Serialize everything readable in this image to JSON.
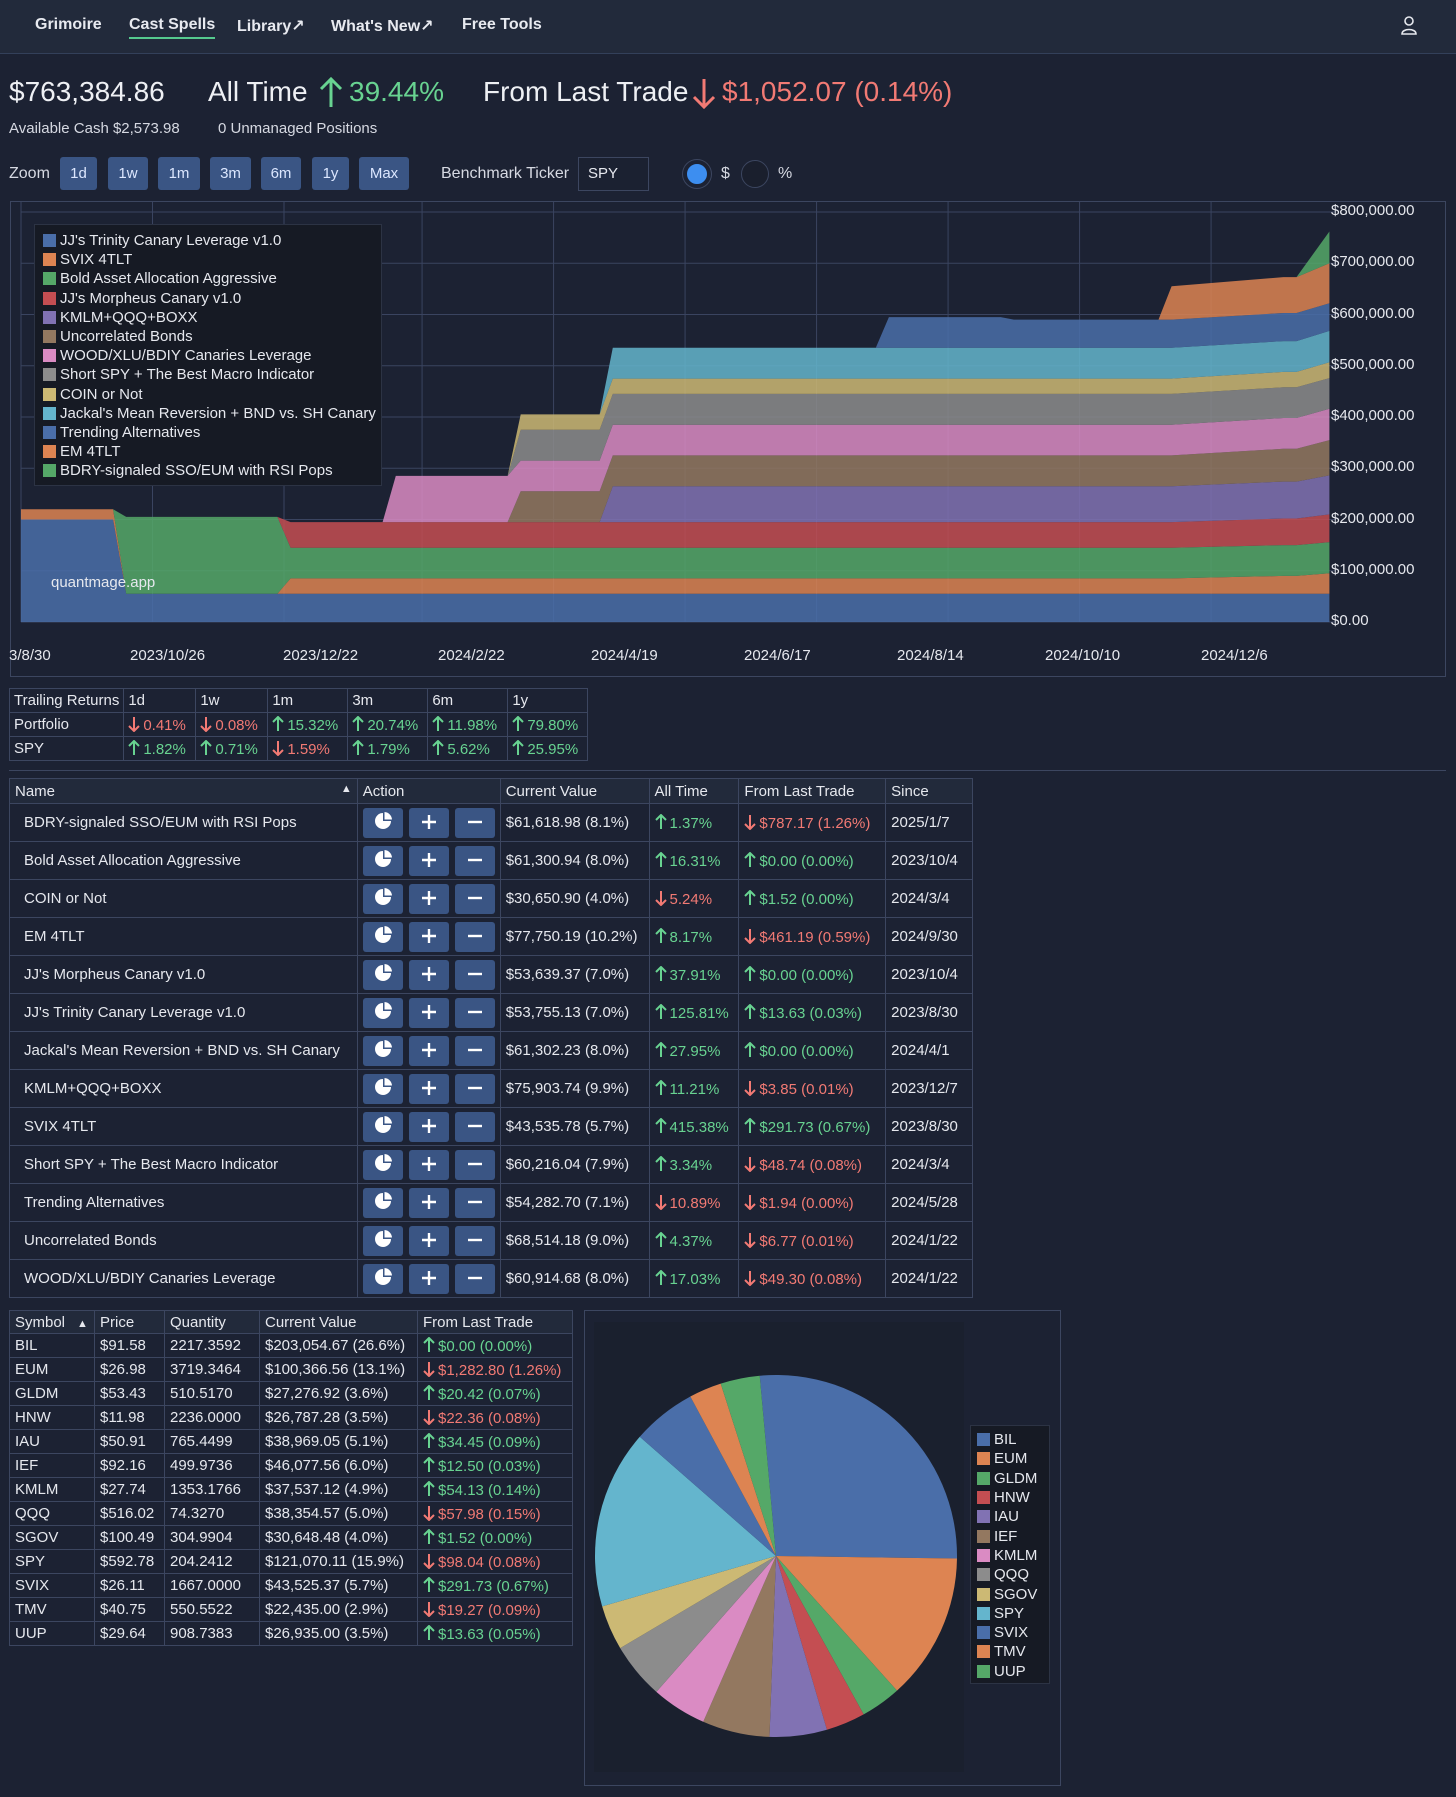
{
  "nav": {
    "items": [
      "Grimoire",
      "Cast Spells",
      "Library↗",
      "What's New↗",
      "Free Tools"
    ],
    "active": "Cast Spells",
    "user_icon": "user-icon"
  },
  "summary": {
    "total_value": "$763,384.86",
    "all_time_label": "All Time",
    "all_time_value": "39.44%",
    "all_time_direction": "up",
    "last_trade_label": "From Last Trade",
    "last_trade_value": "$1,052.07 (0.14%)",
    "last_trade_direction": "down",
    "available_cash": "Available Cash $2,573.98",
    "unmanaged": "0 Unmanaged Positions"
  },
  "controls": {
    "zoom_label": "Zoom",
    "zoom_buttons": [
      "1d",
      "1w",
      "1m",
      "3m",
      "6m",
      "1y",
      "Max"
    ],
    "benchmark_label": "Benchmark Ticker",
    "benchmark_value": "SPY",
    "mode_options": [
      "$",
      "%"
    ],
    "mode_selected": "$"
  },
  "colors": {
    "green": "#68d391",
    "red": "#f27a74",
    "button": "#3a5584",
    "background": "#1c2233"
  },
  "chart_data": {
    "type": "area",
    "stacked": true,
    "watermark": "quantmage.app",
    "x_ticks": [
      "3/8/30",
      "2023/10/26",
      "2023/12/22",
      "2024/2/22",
      "2024/4/19",
      "2024/6/17",
      "2024/8/14",
      "2024/10/10",
      "2024/12/6"
    ],
    "y_ticks": [
      "$0.00",
      "$100,000.00",
      "$200,000.00",
      "$300,000.00",
      "$400,000.00",
      "$500,000.00",
      "$600,000.00",
      "$700,000.00",
      "$800,000.00"
    ],
    "ylim": [
      0,
      800000
    ],
    "legend_position": "top-left",
    "grid": true,
    "x": [
      0,
      0.07,
      0.08,
      0.195,
      0.205,
      0.275,
      0.285,
      0.37,
      0.38,
      0.405,
      0.415,
      0.44,
      0.45,
      0.535,
      0.545,
      0.65,
      0.66,
      0.745,
      0.755,
      0.865,
      0.875,
      0.96,
      0.97,
      0.995
    ],
    "series": [
      {
        "name": "JJ's Trinity Canary Leverage v1.0",
        "color": "#4a6ea9",
        "values": [
          200000,
          200000,
          55000,
          55000,
          55000,
          55000,
          55000,
          55000,
          55000,
          55000,
          55000,
          55000,
          55000,
          55000,
          55000,
          55000,
          55000,
          55000,
          55000,
          55000,
          55000,
          55000,
          55000,
          55000
        ]
      },
      {
        "name": "SVIX 4TLT",
        "color": "#dd8452",
        "values": [
          20000,
          20000,
          0,
          0,
          30000,
          30000,
          30000,
          30000,
          30000,
          30000,
          30000,
          30000,
          30000,
          30000,
          30000,
          30000,
          30000,
          30000,
          30000,
          30000,
          30000,
          35000,
          35000,
          40000
        ]
      },
      {
        "name": "Bold Asset Allocation Aggressive",
        "color": "#55a868",
        "values": [
          0,
          0,
          150000,
          150000,
          60000,
          60000,
          60000,
          60000,
          60000,
          60000,
          60000,
          60000,
          60000,
          60000,
          60000,
          60000,
          60000,
          60000,
          60000,
          60000,
          60000,
          60000,
          60000,
          61000
        ]
      },
      {
        "name": "JJ's Morpheus Canary v1.0",
        "color": "#c44e52",
        "values": [
          0,
          0,
          0,
          0,
          50000,
          50000,
          50000,
          50000,
          50000,
          50000,
          50000,
          50000,
          50000,
          50000,
          50000,
          50000,
          50000,
          50000,
          50000,
          50000,
          50000,
          52000,
          52000,
          54000
        ]
      },
      {
        "name": "KMLM+QQQ+BOXX",
        "color": "#8172b3",
        "values": [
          0,
          0,
          0,
          0,
          0,
          0,
          0,
          0,
          0,
          0,
          0,
          0,
          70000,
          70000,
          70000,
          70000,
          70000,
          70000,
          70000,
          70000,
          70000,
          72000,
          72000,
          76000
        ]
      },
      {
        "name": "Uncorrelated Bonds",
        "color": "#937860",
        "values": [
          0,
          0,
          0,
          0,
          0,
          0,
          0,
          0,
          60000,
          60000,
          60000,
          60000,
          60000,
          60000,
          60000,
          60000,
          60000,
          60000,
          60000,
          60000,
          60000,
          64000,
          64000,
          69000
        ]
      },
      {
        "name": "WOOD/XLU/BDIY Canaries Leverage",
        "color": "#da8bc3",
        "values": [
          0,
          0,
          0,
          0,
          0,
          0,
          90000,
          90000,
          60000,
          60000,
          60000,
          60000,
          60000,
          60000,
          60000,
          60000,
          60000,
          60000,
          60000,
          60000,
          60000,
          60000,
          60000,
          61000
        ]
      },
      {
        "name": "Short SPY + The Best Macro Indicator",
        "color": "#8c8c8c",
        "values": [
          0,
          0,
          0,
          0,
          0,
          0,
          0,
          0,
          60000,
          60000,
          60000,
          60000,
          60000,
          60000,
          60000,
          60000,
          60000,
          60000,
          60000,
          60000,
          60000,
          60000,
          60000,
          60000
        ]
      },
      {
        "name": "COIN or Not",
        "color": "#ccb974",
        "values": [
          0,
          0,
          0,
          0,
          0,
          0,
          0,
          0,
          30000,
          30000,
          30000,
          30000,
          30000,
          30000,
          30000,
          30000,
          30000,
          30000,
          30000,
          30000,
          30000,
          30000,
          30000,
          31000
        ]
      },
      {
        "name": "Jackal's Mean Reversion + BND vs. SH Canary",
        "color": "#64b5cd",
        "values": [
          0,
          0,
          0,
          0,
          0,
          0,
          0,
          0,
          0,
          0,
          0,
          0,
          60000,
          60000,
          60000,
          60000,
          60000,
          60000,
          60000,
          60000,
          60000,
          60000,
          60000,
          61000
        ]
      },
      {
        "name": "Trending Alternatives",
        "color": "#4a6ea9",
        "values": [
          0,
          0,
          0,
          0,
          0,
          0,
          0,
          0,
          0,
          0,
          0,
          0,
          0,
          0,
          0,
          0,
          60000,
          60000,
          55000,
          55000,
          55000,
          55000,
          55000,
          54000
        ]
      },
      {
        "name": "EM 4TLT",
        "color": "#dd8452",
        "values": [
          0,
          0,
          0,
          0,
          0,
          0,
          0,
          0,
          0,
          0,
          0,
          0,
          0,
          0,
          0,
          0,
          0,
          0,
          0,
          0,
          65000,
          70000,
          70000,
          78000
        ]
      },
      {
        "name": "BDRY-signaled SSO/EUM with RSI Pops",
        "color": "#55a868",
        "values": [
          0,
          0,
          0,
          0,
          0,
          0,
          0,
          0,
          0,
          0,
          0,
          0,
          0,
          0,
          0,
          0,
          0,
          0,
          0,
          0,
          0,
          0,
          0,
          62000
        ]
      }
    ]
  },
  "trailing": {
    "headers": [
      "Trailing Returns",
      "1d",
      "1w",
      "1m",
      "3m",
      "6m",
      "1y"
    ],
    "rows": [
      {
        "label": "Portfolio",
        "cells": [
          {
            "v": "0.41%",
            "d": "down"
          },
          {
            "v": "0.08%",
            "d": "down"
          },
          {
            "v": "15.32%",
            "d": "up"
          },
          {
            "v": "20.74%",
            "d": "up"
          },
          {
            "v": "11.98%",
            "d": "up"
          },
          {
            "v": "79.80%",
            "d": "up"
          }
        ]
      },
      {
        "label": "SPY",
        "cells": [
          {
            "v": "1.82%",
            "d": "up"
          },
          {
            "v": "0.71%",
            "d": "up"
          },
          {
            "v": "1.59%",
            "d": "down"
          },
          {
            "v": "1.79%",
            "d": "up"
          },
          {
            "v": "5.62%",
            "d": "up"
          },
          {
            "v": "25.95%",
            "d": "up"
          }
        ]
      }
    ]
  },
  "strategies": {
    "headers": [
      "Name",
      "Action",
      "Current Value",
      "All Time",
      "From Last Trade",
      "Since"
    ],
    "sort_indicator": "▲",
    "rows": [
      {
        "name": "BDRY-signaled SSO/EUM with RSI Pops",
        "value": "$61,618.98 (8.1%)",
        "all_time": "1.37%",
        "at_dir": "up",
        "last": "$787.17 (1.26%)",
        "lt_dir": "down",
        "since": "2025/1/7"
      },
      {
        "name": "Bold Asset Allocation Aggressive",
        "value": "$61,300.94 (8.0%)",
        "all_time": "16.31%",
        "at_dir": "up",
        "last": "$0.00 (0.00%)",
        "lt_dir": "up",
        "since": "2023/10/4"
      },
      {
        "name": "COIN or Not",
        "value": "$30,650.90 (4.0%)",
        "all_time": "5.24%",
        "at_dir": "down",
        "last": "$1.52 (0.00%)",
        "lt_dir": "up",
        "since": "2024/3/4"
      },
      {
        "name": "EM 4TLT",
        "value": "$77,750.19 (10.2%)",
        "all_time": "8.17%",
        "at_dir": "up",
        "last": "$461.19 (0.59%)",
        "lt_dir": "down",
        "since": "2024/9/30"
      },
      {
        "name": "JJ's Morpheus Canary v1.0",
        "value": "$53,639.37 (7.0%)",
        "all_time": "37.91%",
        "at_dir": "up",
        "last": "$0.00 (0.00%)",
        "lt_dir": "up",
        "since": "2023/10/4"
      },
      {
        "name": "JJ's Trinity Canary Leverage v1.0",
        "value": "$53,755.13 (7.0%)",
        "all_time": "125.81%",
        "at_dir": "up",
        "last": "$13.63 (0.03%)",
        "lt_dir": "up",
        "since": "2023/8/30"
      },
      {
        "name": "Jackal's Mean Reversion + BND vs. SH Canary",
        "value": "$61,302.23 (8.0%)",
        "all_time": "27.95%",
        "at_dir": "up",
        "last": "$0.00 (0.00%)",
        "lt_dir": "up",
        "since": "2024/4/1"
      },
      {
        "name": "KMLM+QQQ+BOXX",
        "value": "$75,903.74 (9.9%)",
        "all_time": "11.21%",
        "at_dir": "up",
        "last": "$3.85 (0.01%)",
        "lt_dir": "down",
        "since": "2023/12/7"
      },
      {
        "name": "SVIX 4TLT",
        "value": "$43,535.78 (5.7%)",
        "all_time": "415.38%",
        "at_dir": "up",
        "last": "$291.73 (0.67%)",
        "lt_dir": "up",
        "since": "2023/8/30"
      },
      {
        "name": "Short SPY + The Best Macro Indicator",
        "value": "$60,216.04 (7.9%)",
        "all_time": "3.34%",
        "at_dir": "up",
        "last": "$48.74 (0.08%)",
        "lt_dir": "down",
        "since": "2024/3/4"
      },
      {
        "name": "Trending Alternatives",
        "value": "$54,282.70 (7.1%)",
        "all_time": "10.89%",
        "at_dir": "down",
        "last": "$1.94 (0.00%)",
        "lt_dir": "down",
        "since": "2024/5/28"
      },
      {
        "name": "Uncorrelated Bonds",
        "value": "$68,514.18 (9.0%)",
        "all_time": "4.37%",
        "at_dir": "up",
        "last": "$6.77 (0.01%)",
        "lt_dir": "down",
        "since": "2024/1/22"
      },
      {
        "name": "WOOD/XLU/BDIY Canaries Leverage",
        "value": "$60,914.68 (8.0%)",
        "all_time": "17.03%",
        "at_dir": "up",
        "last": "$49.30 (0.08%)",
        "lt_dir": "down",
        "since": "2024/1/22"
      }
    ]
  },
  "holdings": {
    "headers": [
      "Symbol",
      "Price",
      "Quantity",
      "Current Value",
      "From Last Trade"
    ],
    "sort_indicator": "▲",
    "rows": [
      {
        "symbol": "BIL",
        "price": "$91.58",
        "qty": "2217.3592",
        "value": "$203,054.67 (26.6%)",
        "last": "$0.00 (0.00%)",
        "dir": "up"
      },
      {
        "symbol": "EUM",
        "price": "$26.98",
        "qty": "3719.3464",
        "value": "$100,366.56 (13.1%)",
        "last": "$1,282.80 (1.26%)",
        "dir": "down"
      },
      {
        "symbol": "GLDM",
        "price": "$53.43",
        "qty": "510.5170",
        "value": "$27,276.92 (3.6%)",
        "last": "$20.42 (0.07%)",
        "dir": "up"
      },
      {
        "symbol": "HNW",
        "price": "$11.98",
        "qty": "2236.0000",
        "value": "$26,787.28 (3.5%)",
        "last": "$22.36 (0.08%)",
        "dir": "down"
      },
      {
        "symbol": "IAU",
        "price": "$50.91",
        "qty": "765.4499",
        "value": "$38,969.05 (5.1%)",
        "last": "$34.45 (0.09%)",
        "dir": "up"
      },
      {
        "symbol": "IEF",
        "price": "$92.16",
        "qty": "499.9736",
        "value": "$46,077.56 (6.0%)",
        "last": "$12.50 (0.03%)",
        "dir": "up"
      },
      {
        "symbol": "KMLM",
        "price": "$27.74",
        "qty": "1353.1766",
        "value": "$37,537.12 (4.9%)",
        "last": "$54.13 (0.14%)",
        "dir": "up"
      },
      {
        "symbol": "QQQ",
        "price": "$516.02",
        "qty": "74.3270",
        "value": "$38,354.57 (5.0%)",
        "last": "$57.98 (0.15%)",
        "dir": "down"
      },
      {
        "symbol": "SGOV",
        "price": "$100.49",
        "qty": "304.9904",
        "value": "$30,648.48 (4.0%)",
        "last": "$1.52 (0.00%)",
        "dir": "up"
      },
      {
        "symbol": "SPY",
        "price": "$592.78",
        "qty": "204.2412",
        "value": "$121,070.11 (15.9%)",
        "last": "$98.04 (0.08%)",
        "dir": "down"
      },
      {
        "symbol": "SVIX",
        "price": "$26.11",
        "qty": "1667.0000",
        "value": "$43,525.37 (5.7%)",
        "last": "$291.73 (0.67%)",
        "dir": "up"
      },
      {
        "symbol": "TMV",
        "price": "$40.75",
        "qty": "550.5522",
        "value": "$22,435.00 (2.9%)",
        "last": "$19.27 (0.09%)",
        "dir": "down"
      },
      {
        "symbol": "UUP",
        "price": "$29.64",
        "qty": "908.7383",
        "value": "$26,935.00 (3.5%)",
        "last": "$13.63 (0.05%)",
        "dir": "up"
      }
    ]
  },
  "pie": {
    "type": "pie",
    "labels": [
      "BIL",
      "EUM",
      "GLDM",
      "HNW",
      "IAU",
      "IEF",
      "KMLM",
      "QQQ",
      "SGOV",
      "SPY",
      "SVIX",
      "TMV",
      "UUP"
    ],
    "values": [
      26.6,
      13.1,
      3.6,
      3.5,
      5.1,
      6.0,
      4.9,
      5.0,
      4.0,
      15.9,
      5.7,
      2.9,
      3.5
    ],
    "colors": [
      "#4a6ea9",
      "#dd8452",
      "#55a868",
      "#c44e52",
      "#8172b3",
      "#937860",
      "#da8bc3",
      "#8c8c8c",
      "#ccb974",
      "#64b5cd",
      "#4a6ea9",
      "#dd8452",
      "#55a868"
    ]
  }
}
